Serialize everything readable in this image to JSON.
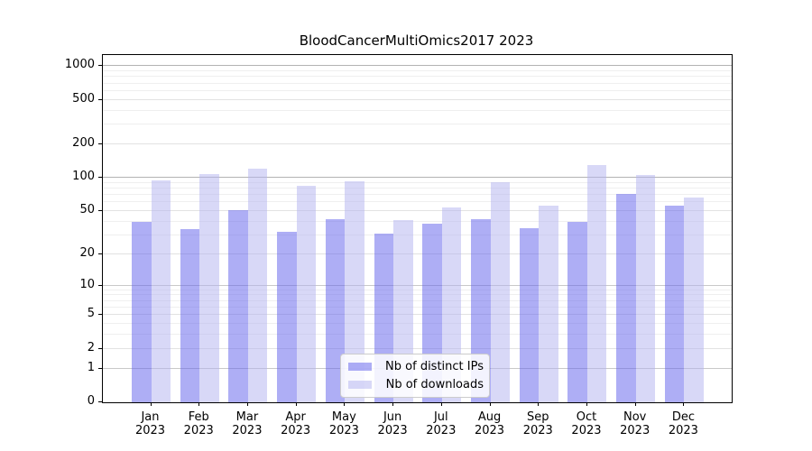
{
  "title": "BloodCancerMultiOmics2017 2023",
  "year": "2023",
  "months": [
    "Jan",
    "Feb",
    "Mar",
    "Apr",
    "May",
    "Jun",
    "Jul",
    "Aug",
    "Sep",
    "Oct",
    "Nov",
    "Dec"
  ],
  "legend": {
    "items": [
      {
        "label": "Nb of distinct IPs",
        "color": "rgba(100,100,235,0.52)"
      },
      {
        "label": "Nb of downloads",
        "color": "rgba(180,180,240,0.52)"
      }
    ]
  },
  "colors": {
    "ips_bar": "rgba(100,100,235,0.52)",
    "downloads_bar": "rgba(180,180,240,0.52)",
    "grid_major_dark": "#b3b3b3",
    "grid_major": "#c9c9c9",
    "grid_labeled": "#e2e2e2",
    "grid_minor": "#efefef"
  },
  "y_axis": {
    "tick_labels": [
      "1000",
      "500",
      "200",
      "100",
      "50",
      "20",
      "10",
      "5",
      "2",
      "1",
      "0"
    ],
    "tick_values": [
      1000,
      500,
      200,
      100,
      50,
      20,
      10,
      5,
      2,
      1,
      0
    ]
  },
  "chart_data": {
    "type": "bar",
    "title": "BloodCancerMultiOmics2017 2023",
    "categories": [
      "Jan 2023",
      "Feb 2023",
      "Mar 2023",
      "Apr 2023",
      "May 2023",
      "Jun 2023",
      "Jul 2023",
      "Aug 2023",
      "Sep 2023",
      "Oct 2023",
      "Nov 2023",
      "Dec 2023"
    ],
    "series": [
      {
        "name": "Nb of distinct IPs",
        "values": [
          40,
          34,
          51,
          32,
          42,
          31,
          38,
          42,
          35,
          40,
          71,
          56
        ]
      },
      {
        "name": "Nb of downloads",
        "values": [
          95,
          108,
          121,
          85,
          93,
          41,
          54,
          92,
          56,
          130,
          106,
          66
        ]
      }
    ],
    "xlabel": "",
    "ylabel": "",
    "scale": "log1p",
    "ylim": [
      0,
      1258
    ],
    "y_ticks": [
      0,
      1,
      2,
      5,
      10,
      20,
      50,
      100,
      200,
      500,
      1000
    ],
    "grid": "on",
    "legend_position": "lower center"
  }
}
